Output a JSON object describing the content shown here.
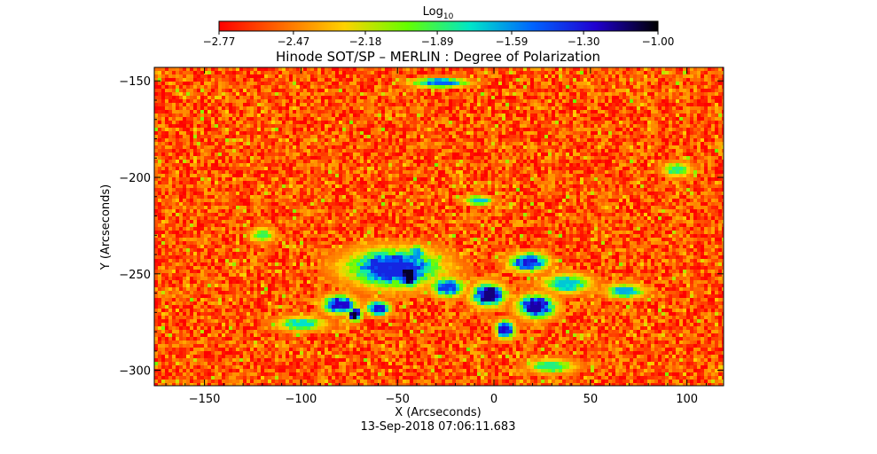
{
  "chart_data": {
    "type": "heatmap",
    "title": "Hinode SOT/SP – MERLIN : Degree of Polarization",
    "xlabel": "X (Arcseconds)",
    "ylabel": "Y (Arcseconds)",
    "timestamp": "13-Sep-2018 07:06:11.683",
    "xlim": [
      -176,
      119
    ],
    "ylim": [
      -308,
      -143
    ],
    "x_ticks": [
      -150,
      -100,
      -50,
      0,
      50,
      100
    ],
    "y_ticks": [
      -150,
      -200,
      -250,
      -300
    ],
    "x_tick_labels": [
      "−150",
      "−100",
      "−50",
      "0",
      "50",
      "100"
    ],
    "y_tick_labels": [
      "−150",
      "−200",
      "−250",
      "−300"
    ],
    "colorbar": {
      "label_base": "Log",
      "label_subscript": "10",
      "range": [
        -2.77,
        -1.0
      ],
      "ticks": [
        -2.77,
        -2.47,
        -2.18,
        -1.89,
        -1.59,
        -1.3,
        -1.0
      ],
      "tick_labels": [
        "−2.77",
        "−2.47",
        "−2.18",
        "−1.89",
        "−1.59",
        "−1.30",
        "−1.00"
      ],
      "colormap": [
        "#ff0000",
        "#ff6a00",
        "#ffd200",
        "#64ff00",
        "#00e6c8",
        "#0064ff",
        "#2000d0",
        "#000000"
      ]
    },
    "background_log_value": -2.58,
    "features": [
      {
        "x": -52,
        "y": -247,
        "rx": 20,
        "ry": 8,
        "value": -1.35
      },
      {
        "x": -44,
        "y": -251,
        "rx": 5,
        "ry": 5,
        "value": -1.05
      },
      {
        "x": -80,
        "y": -266,
        "rx": 7,
        "ry": 4,
        "value": -1.25
      },
      {
        "x": -72,
        "y": -271,
        "rx": 3,
        "ry": 3,
        "value": -1.05
      },
      {
        "x": -60,
        "y": -268,
        "rx": 5,
        "ry": 3,
        "value": -1.3
      },
      {
        "x": -24,
        "y": -257,
        "rx": 7,
        "ry": 4,
        "value": -1.4
      },
      {
        "x": -3,
        "y": -261,
        "rx": 7,
        "ry": 5,
        "value": -1.15
      },
      {
        "x": 18,
        "y": -244,
        "rx": 8,
        "ry": 4,
        "value": -1.3
      },
      {
        "x": 22,
        "y": -267,
        "rx": 8,
        "ry": 5,
        "value": -1.2
      },
      {
        "x": 6,
        "y": -279,
        "rx": 4,
        "ry": 4,
        "value": -1.25
      },
      {
        "x": 38,
        "y": -255,
        "rx": 10,
        "ry": 4,
        "value": -1.7
      },
      {
        "x": -28,
        "y": -151,
        "rx": 12,
        "ry": 2,
        "value": -1.5
      },
      {
        "x": -8,
        "y": -212,
        "rx": 6,
        "ry": 2,
        "value": -1.7
      },
      {
        "x": 68,
        "y": -259,
        "rx": 8,
        "ry": 3,
        "value": -1.65
      },
      {
        "x": -100,
        "y": -276,
        "rx": 10,
        "ry": 3,
        "value": -1.75
      },
      {
        "x": -40,
        "y": -240,
        "rx": 4,
        "ry": 4,
        "value": -1.6
      },
      {
        "x": 95,
        "y": -196,
        "rx": 6,
        "ry": 3,
        "value": -1.85
      },
      {
        "x": 30,
        "y": -298,
        "rx": 10,
        "ry": 3,
        "value": -1.85
      },
      {
        "x": -120,
        "y": -230,
        "rx": 5,
        "ry": 3,
        "value": -1.9
      }
    ]
  }
}
